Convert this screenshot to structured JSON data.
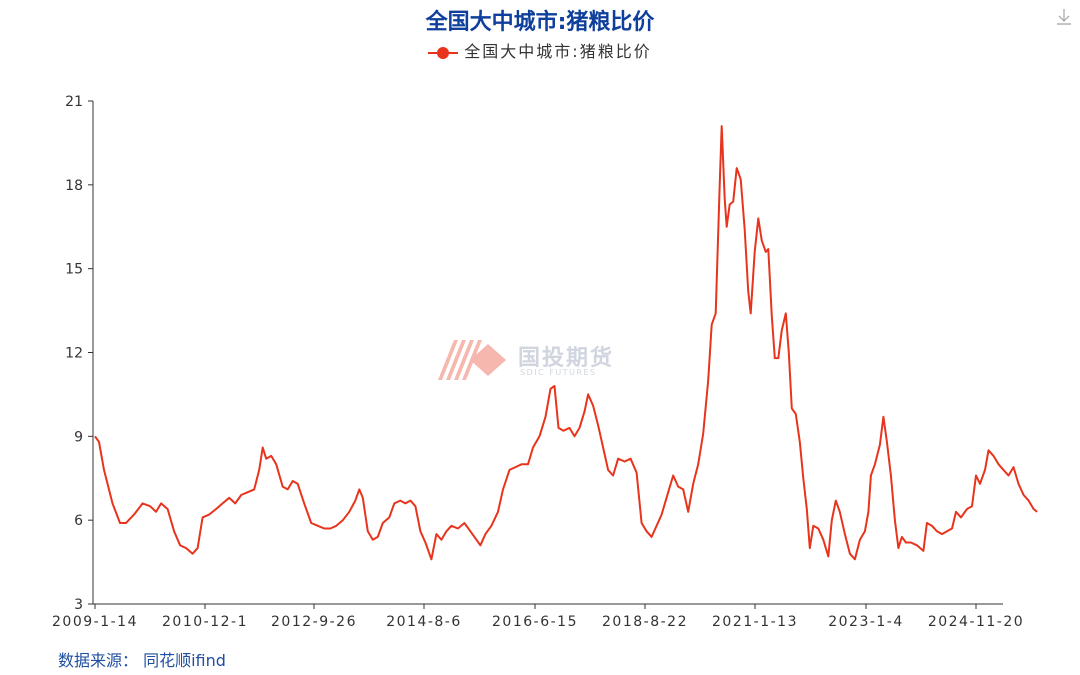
{
  "chart_data": {
    "type": "line",
    "title": "全国大中城市:猪粮比价",
    "legend": [
      "全国大中城市:猪粮比价"
    ],
    "legend_position": "top-center",
    "source": "数据来源： 同花顺ifind",
    "watermark": {
      "name": "国投期货",
      "sub": "SDIC FUTURES"
    },
    "ylim": [
      3,
      21
    ],
    "yticks": [
      3,
      6,
      9,
      12,
      15,
      18,
      21
    ],
    "xticks": [
      "2009-1-14",
      "2010-12-1",
      "2012-9-26",
      "2014-8-6",
      "2016-6-15",
      "2018-8-22",
      "2021-1-13",
      "2023-1-4",
      "2024-11-20"
    ],
    "grid": false,
    "color": "#e8341c",
    "series": [
      {
        "name": "全国大中城市:猪粮比价",
        "points": [
          [
            0.0,
            9.0
          ],
          [
            0.08,
            8.8
          ],
          [
            0.18,
            7.8
          ],
          [
            0.35,
            6.6
          ],
          [
            0.5,
            5.9
          ],
          [
            0.62,
            5.9
          ],
          [
            0.78,
            6.2
          ],
          [
            0.95,
            6.6
          ],
          [
            1.1,
            6.5
          ],
          [
            1.22,
            6.3
          ],
          [
            1.32,
            6.6
          ],
          [
            1.45,
            6.4
          ],
          [
            1.58,
            5.6
          ],
          [
            1.7,
            5.1
          ],
          [
            1.82,
            5.0
          ],
          [
            1.95,
            4.8
          ],
          [
            2.05,
            5.0
          ],
          [
            2.15,
            6.1
          ],
          [
            2.28,
            6.2
          ],
          [
            2.42,
            6.4
          ],
          [
            2.55,
            6.6
          ],
          [
            2.68,
            6.8
          ],
          [
            2.8,
            6.6
          ],
          [
            2.92,
            6.9
          ],
          [
            3.05,
            7.0
          ],
          [
            3.18,
            7.1
          ],
          [
            3.28,
            7.8
          ],
          [
            3.35,
            8.6
          ],
          [
            3.42,
            8.2
          ],
          [
            3.52,
            8.3
          ],
          [
            3.62,
            8.0
          ],
          [
            3.75,
            7.2
          ],
          [
            3.85,
            7.1
          ],
          [
            3.95,
            7.4
          ],
          [
            4.05,
            7.3
          ],
          [
            4.18,
            6.6
          ],
          [
            4.32,
            5.9
          ],
          [
            4.45,
            5.8
          ],
          [
            4.58,
            5.7
          ],
          [
            4.7,
            5.7
          ],
          [
            4.82,
            5.8
          ],
          [
            4.95,
            6.0
          ],
          [
            5.08,
            6.3
          ],
          [
            5.2,
            6.7
          ],
          [
            5.28,
            7.1
          ],
          [
            5.35,
            6.8
          ],
          [
            5.45,
            5.6
          ],
          [
            5.55,
            5.3
          ],
          [
            5.65,
            5.4
          ],
          [
            5.75,
            5.9
          ],
          [
            5.88,
            6.1
          ],
          [
            5.98,
            6.6
          ],
          [
            6.1,
            6.7
          ],
          [
            6.2,
            6.6
          ],
          [
            6.3,
            6.7
          ],
          [
            6.4,
            6.5
          ],
          [
            6.5,
            5.6
          ],
          [
            6.6,
            5.2
          ],
          [
            6.72,
            4.6
          ],
          [
            6.82,
            5.5
          ],
          [
            6.92,
            5.3
          ],
          [
            7.02,
            5.6
          ],
          [
            7.12,
            5.8
          ],
          [
            7.25,
            5.7
          ],
          [
            7.38,
            5.9
          ],
          [
            7.5,
            5.6
          ],
          [
            7.62,
            5.3
          ],
          [
            7.7,
            5.1
          ],
          [
            7.8,
            5.5
          ],
          [
            7.92,
            5.8
          ],
          [
            8.05,
            6.3
          ],
          [
            8.15,
            7.1
          ],
          [
            8.28,
            7.8
          ],
          [
            8.4,
            7.9
          ],
          [
            8.52,
            8.0
          ],
          [
            8.65,
            8.0
          ],
          [
            8.75,
            8.6
          ],
          [
            8.88,
            9.0
          ],
          [
            9.0,
            9.7
          ],
          [
            9.1,
            10.7
          ],
          [
            9.18,
            10.8
          ],
          [
            9.26,
            9.3
          ],
          [
            9.36,
            9.2
          ],
          [
            9.48,
            9.3
          ],
          [
            9.58,
            9.0
          ],
          [
            9.68,
            9.3
          ],
          [
            9.78,
            9.9
          ],
          [
            9.85,
            10.5
          ],
          [
            9.95,
            10.1
          ],
          [
            10.05,
            9.4
          ],
          [
            10.15,
            8.6
          ],
          [
            10.25,
            7.8
          ],
          [
            10.35,
            7.6
          ],
          [
            10.45,
            8.2
          ],
          [
            10.58,
            8.1
          ],
          [
            10.7,
            8.2
          ],
          [
            10.82,
            7.7
          ],
          [
            10.92,
            5.9
          ],
          [
            11.02,
            5.6
          ],
          [
            11.12,
            5.4
          ],
          [
            11.22,
            5.8
          ],
          [
            11.32,
            6.2
          ],
          [
            11.45,
            7.0
          ],
          [
            11.55,
            7.6
          ],
          [
            11.65,
            7.2
          ],
          [
            11.75,
            7.1
          ],
          [
            11.85,
            6.3
          ],
          [
            11.95,
            7.3
          ],
          [
            12.05,
            8.0
          ],
          [
            12.15,
            9.1
          ],
          [
            12.25,
            11.0
          ],
          [
            12.32,
            13.0
          ],
          [
            12.4,
            13.4
          ],
          [
            12.48,
            18.0
          ],
          [
            12.52,
            20.1
          ],
          [
            12.58,
            17.5
          ],
          [
            12.62,
            16.5
          ],
          [
            12.68,
            17.3
          ],
          [
            12.75,
            17.4
          ],
          [
            12.82,
            18.6
          ],
          [
            12.9,
            18.2
          ],
          [
            12.98,
            16.4
          ],
          [
            13.05,
            14.2
          ],
          [
            13.1,
            13.4
          ],
          [
            13.18,
            15.6
          ],
          [
            13.25,
            16.8
          ],
          [
            13.32,
            16.0
          ],
          [
            13.4,
            15.6
          ],
          [
            13.45,
            15.7
          ],
          [
            13.52,
            13.3
          ],
          [
            13.58,
            11.8
          ],
          [
            13.65,
            11.8
          ],
          [
            13.72,
            12.8
          ],
          [
            13.8,
            13.4
          ],
          [
            13.86,
            12.0
          ],
          [
            13.92,
            10.0
          ],
          [
            14.0,
            9.8
          ],
          [
            14.08,
            8.8
          ],
          [
            14.15,
            7.5
          ],
          [
            14.22,
            6.4
          ],
          [
            14.28,
            5.0
          ],
          [
            14.35,
            5.8
          ],
          [
            14.45,
            5.7
          ],
          [
            14.55,
            5.3
          ],
          [
            14.65,
            4.7
          ],
          [
            14.72,
            6.0
          ],
          [
            14.8,
            6.7
          ],
          [
            14.88,
            6.3
          ],
          [
            14.98,
            5.5
          ],
          [
            15.08,
            4.8
          ],
          [
            15.18,
            4.6
          ],
          [
            15.28,
            5.3
          ],
          [
            15.38,
            5.6
          ],
          [
            15.45,
            6.3
          ],
          [
            15.5,
            7.6
          ],
          [
            15.58,
            8.0
          ],
          [
            15.68,
            8.7
          ],
          [
            15.75,
            9.7
          ],
          [
            15.82,
            8.8
          ],
          [
            15.9,
            7.6
          ],
          [
            15.98,
            6.0
          ],
          [
            16.05,
            5.0
          ],
          [
            16.12,
            5.4
          ],
          [
            16.2,
            5.2
          ],
          [
            16.3,
            5.2
          ],
          [
            16.42,
            5.1
          ],
          [
            16.55,
            4.9
          ],
          [
            16.62,
            5.9
          ],
          [
            16.72,
            5.8
          ],
          [
            16.82,
            5.6
          ],
          [
            16.92,
            5.5
          ],
          [
            17.02,
            5.6
          ],
          [
            17.12,
            5.7
          ],
          [
            17.2,
            6.3
          ],
          [
            17.3,
            6.1
          ],
          [
            17.42,
            6.4
          ],
          [
            17.52,
            6.5
          ],
          [
            17.6,
            7.6
          ],
          [
            17.68,
            7.3
          ],
          [
            17.78,
            7.8
          ],
          [
            17.85,
            8.5
          ],
          [
            17.95,
            8.3
          ],
          [
            18.05,
            8.0
          ],
          [
            18.15,
            7.8
          ],
          [
            18.25,
            7.6
          ],
          [
            18.35,
            7.9
          ],
          [
            18.45,
            7.3
          ],
          [
            18.55,
            6.9
          ],
          [
            18.65,
            6.7
          ],
          [
            18.75,
            6.4
          ],
          [
            18.82,
            6.3
          ]
        ]
      }
    ]
  }
}
